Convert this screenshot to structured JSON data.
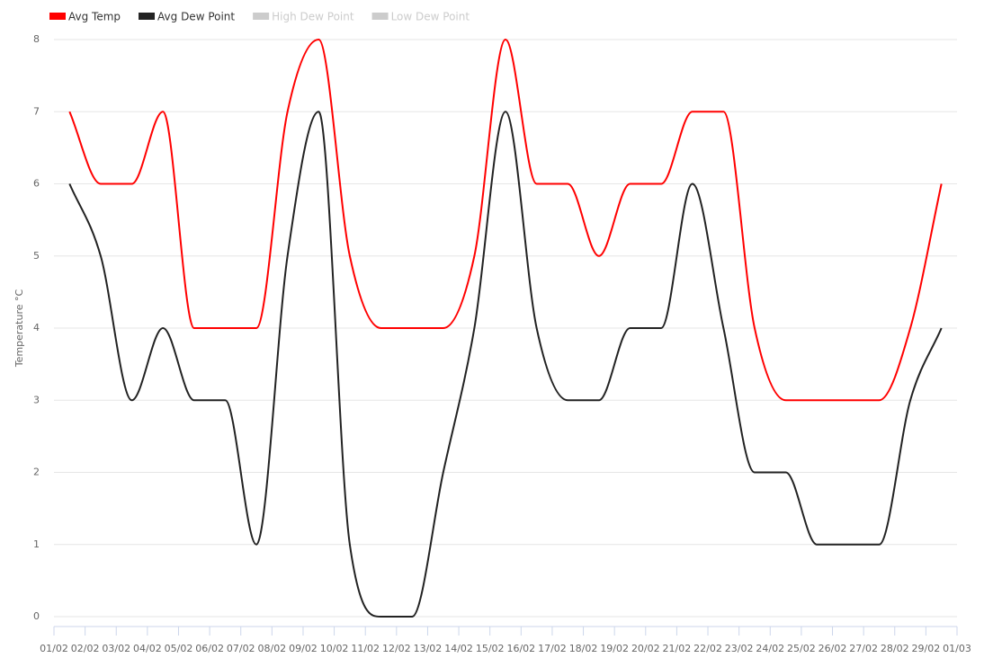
{
  "chart_data": {
    "type": "line",
    "y_label": "Temperature °C",
    "categories": [
      "01/02",
      "02/02",
      "03/02",
      "04/02",
      "05/02",
      "06/02",
      "07/02",
      "08/02",
      "09/02",
      "10/02",
      "11/02",
      "12/02",
      "13/02",
      "14/02",
      "15/02",
      "16/02",
      "17/02",
      "18/02",
      "19/02",
      "20/02",
      "21/02",
      "22/02",
      "23/02",
      "24/02",
      "25/02",
      "26/02",
      "27/02",
      "28/02",
      "29/02",
      "01/03"
    ],
    "series": [
      {
        "name": "Avg Temp",
        "color": "#ff0000",
        "values": [
          7,
          6,
          6,
          7,
          4,
          4,
          4,
          7,
          8,
          5,
          4,
          4,
          4,
          5,
          8,
          6,
          6,
          5,
          6,
          6,
          7,
          7,
          4,
          3,
          3,
          3,
          3,
          4,
          6,
          null
        ]
      },
      {
        "name": "Avg Dew Point",
        "color": "#222222",
        "values": [
          6,
          5,
          3,
          4,
          3,
          3,
          1,
          5,
          7,
          1,
          0,
          0,
          2,
          4,
          7,
          4,
          3,
          3,
          4,
          4,
          6,
          4,
          2,
          2,
          1,
          1,
          1,
          3,
          4,
          null
        ]
      }
    ],
    "hidden_series": [
      {
        "name": "High Dew Point",
        "color": "#cccccc"
      },
      {
        "name": "Low Dew Point",
        "color": "#cccccc"
      }
    ],
    "ylim": [
      0,
      8
    ],
    "yticks": [
      0,
      1,
      2,
      3,
      4,
      5,
      6,
      7,
      8
    ],
    "grid": true
  }
}
